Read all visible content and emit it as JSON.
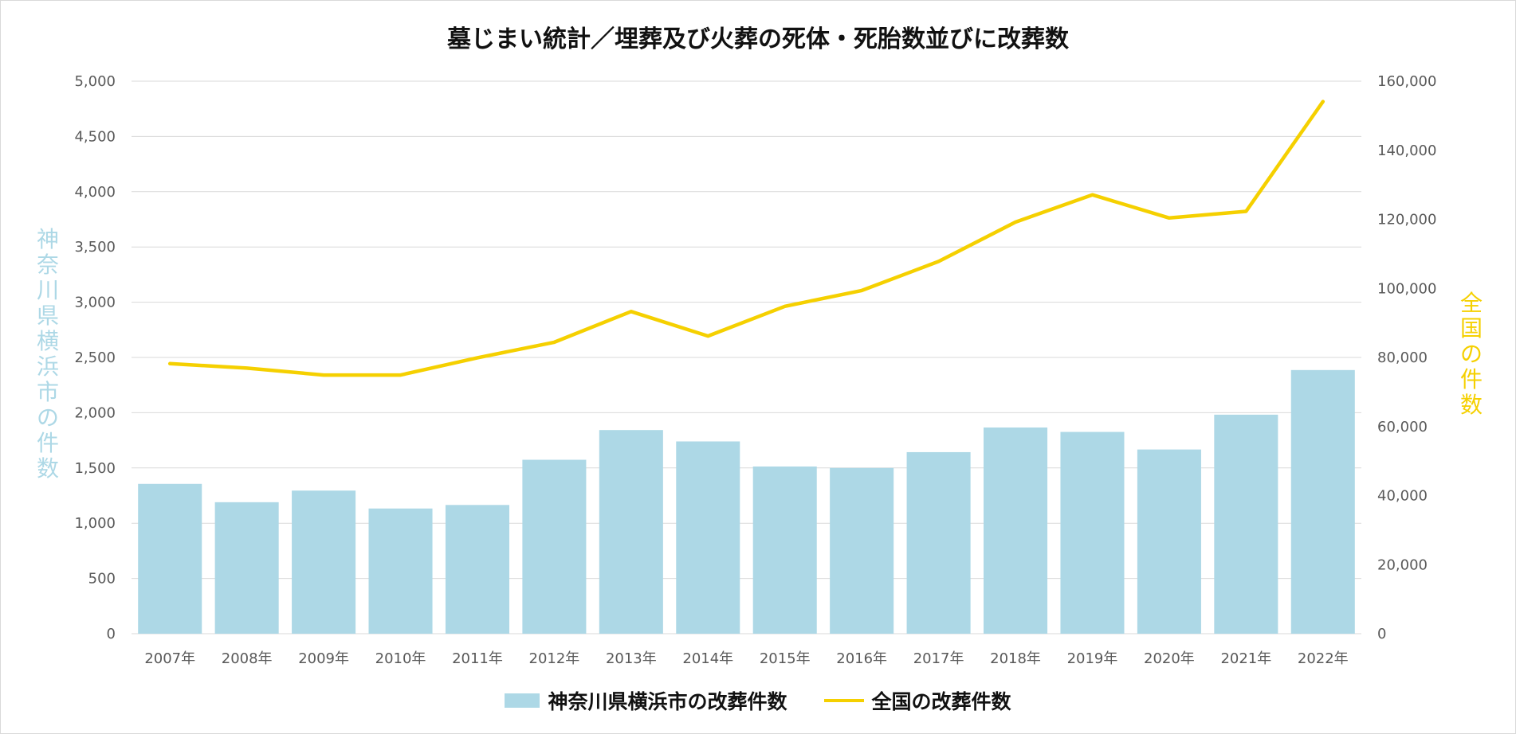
{
  "chart_data": {
    "type": "bar",
    "title": "墓じまい統計／埋葬及び火葬の死体・死胎数並びに改葬数",
    "categories": [
      "2007年",
      "2008年",
      "2009年",
      "2010年",
      "2011年",
      "2012年",
      "2013年",
      "2014年",
      "2015年",
      "2016年",
      "2017年",
      "2018年",
      "2019年",
      "2020年",
      "2021年",
      "2022年"
    ],
    "ylabel": "神奈川県横浜市の件数",
    "y2label": "全国の件数",
    "ylim": [
      0,
      5000
    ],
    "y2lim": [
      0,
      160000
    ],
    "yticks": [
      "0",
      "500",
      "1,000",
      "1,500",
      "2,000",
      "2,500",
      "3,000",
      "3,500",
      "4,000",
      "4,500",
      "5,000"
    ],
    "y2ticks": [
      "0",
      "20,000",
      "40,000",
      "60,000",
      "80,000",
      "100,000",
      "120,000",
      "140,000",
      "160,000"
    ],
    "grid": true,
    "legend_position": "bottom",
    "series": [
      {
        "name": "神奈川県横浜市の改葬件数",
        "type": "bar",
        "axis": "left",
        "color": "#add8e6",
        "values": [
          1356,
          1190,
          1295,
          1133,
          1165,
          1574,
          1843,
          1740,
          1513,
          1500,
          1643,
          1866,
          1826,
          1667,
          1982,
          2386
        ]
      },
      {
        "name": "全国の改葬件数",
        "type": "line",
        "axis": "right",
        "color": "#f5d000",
        "values": [
          78200,
          76900,
          74900,
          74900,
          79900,
          84400,
          93300,
          86200,
          94800,
          99400,
          107800,
          119200,
          127100,
          120400,
          122300,
          154100
        ]
      }
    ]
  }
}
